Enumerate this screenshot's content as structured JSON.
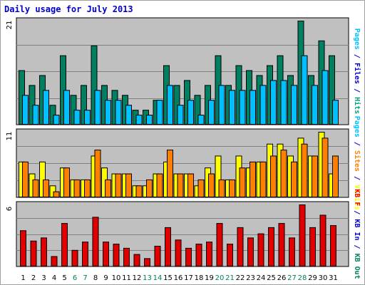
{
  "page": {
    "title": "Daily usage for July 2013",
    "background": "#ffffff",
    "frame_color": "#a0a0a0",
    "panel_color": "#c0c0c0"
  },
  "chart_data": [
    {
      "type": "bar",
      "panel": "top",
      "title": "Daily usage for July 2013",
      "ylabel_parts": [
        {
          "text": "Pages",
          "color": "#00c0ff"
        },
        {
          "text": " / ",
          "color": "#0000cc"
        },
        {
          "text": "Files",
          "color": "#0000cc"
        },
        {
          "text": " / ",
          "color": "#0000cc"
        },
        {
          "text": "Hits",
          "color": "#00a080"
        }
      ],
      "ymax_label": "21",
      "ylim": [
        0,
        21
      ],
      "categories": [
        "1",
        "2",
        "3",
        "4",
        "5",
        "6",
        "7",
        "8",
        "9",
        "10",
        "11",
        "12",
        "13",
        "14",
        "15",
        "16",
        "17",
        "18",
        "19",
        "20",
        "21",
        "22",
        "23",
        "24",
        "25",
        "26",
        "27",
        "28",
        "29",
        "30",
        "31"
      ],
      "series": [
        {
          "name": "Hits",
          "color": "#008060",
          "values": [
            11,
            8,
            10,
            4,
            14,
            6,
            8,
            16,
            8,
            7,
            6,
            3,
            3,
            5,
            12,
            8,
            9,
            6,
            8,
            14,
            8,
            12,
            11,
            10,
            12,
            14,
            10,
            21,
            10,
            17,
            14
          ]
        },
        {
          "name": "Files",
          "color": "#00c0ff",
          "values": [
            6,
            4,
            7,
            2,
            7,
            3,
            3,
            7,
            5,
            5,
            4,
            2,
            2,
            5,
            8,
            4,
            5,
            2,
            5,
            8,
            7,
            7,
            7,
            8,
            9,
            9,
            8,
            14,
            8,
            11,
            5
          ]
        }
      ]
    },
    {
      "type": "bar",
      "panel": "middle",
      "ylabel_parts": [
        {
          "text": "Pages",
          "color": "#00c0ff"
        },
        {
          "text": " / ",
          "color": "#0000cc"
        },
        {
          "text": "Sites",
          "color": "#ff8000"
        },
        {
          "text": " / ",
          "color": "#0000cc"
        },
        {
          "text": "Visits",
          "color": "#ffff00"
        }
      ],
      "ymax_label": "11",
      "ylim": [
        0,
        11
      ],
      "categories": [
        "1",
        "2",
        "3",
        "4",
        "5",
        "6",
        "7",
        "8",
        "9",
        "10",
        "11",
        "12",
        "13",
        "14",
        "15",
        "16",
        "17",
        "18",
        "19",
        "20",
        "21",
        "22",
        "23",
        "24",
        "25",
        "26",
        "27",
        "28",
        "29",
        "30",
        "31"
      ],
      "series": [
        {
          "name": "Visits",
          "color": "#ffff00",
          "values": [
            6,
            4,
            6,
            2,
            5,
            3,
            3,
            7,
            5,
            4,
            4,
            2,
            2,
            4,
            6,
            4,
            4,
            2,
            5,
            7,
            3,
            7,
            5,
            6,
            9,
            9,
            7,
            10,
            7,
            11,
            4
          ]
        },
        {
          "name": "Sites",
          "color": "#ff8000",
          "values": [
            6,
            3,
            3,
            1,
            5,
            3,
            3,
            8,
            3,
            4,
            4,
            2,
            3,
            4,
            8,
            4,
            4,
            3,
            4,
            3,
            3,
            5,
            6,
            6,
            7,
            8,
            6,
            9,
            7,
            10,
            7
          ]
        }
      ]
    },
    {
      "type": "bar",
      "panel": "bottom",
      "ylabel_parts": [
        {
          "text": "KB F",
          "color": "#ff0000"
        },
        {
          "text": " / ",
          "color": "#0000cc"
        },
        {
          "text": "KB In",
          "color": "#0000cc"
        },
        {
          "text": " / ",
          "color": "#0000cc"
        },
        {
          "text": "KB Out",
          "color": "#008060"
        }
      ],
      "ymax_label": "6",
      "ylim": [
        0,
        6
      ],
      "categories": [
        "1",
        "2",
        "3",
        "4",
        "5",
        "6",
        "7",
        "8",
        "9",
        "10",
        "11",
        "12",
        "13",
        "14",
        "15",
        "16",
        "17",
        "18",
        "19",
        "20",
        "21",
        "22",
        "23",
        "24",
        "25",
        "26",
        "27",
        "28",
        "29",
        "30",
        "31"
      ],
      "series": [
        {
          "name": "KB F",
          "color": "#e00000",
          "values": [
            3.5,
            2.5,
            2.8,
            1.0,
            4.2,
            1.6,
            2.4,
            4.8,
            2.4,
            2.2,
            1.8,
            1.2,
            0.8,
            2.0,
            3.8,
            2.6,
            1.8,
            2.2,
            2.4,
            4.2,
            2.2,
            3.8,
            2.8,
            3.2,
            3.8,
            4.2,
            2.8,
            6.0,
            3.8,
            5.0,
            4.0
          ]
        }
      ]
    }
  ],
  "x_axis": {
    "labels": [
      "1",
      "2",
      "3",
      "4",
      "5",
      "6",
      "7",
      "8",
      "9",
      "10",
      "11",
      "12",
      "13",
      "14",
      "15",
      "16",
      "17",
      "18",
      "19",
      "20",
      "21",
      "22",
      "23",
      "24",
      "25",
      "26",
      "27",
      "28",
      "29",
      "30",
      "31"
    ],
    "weekend_days": [
      "6",
      "7",
      "13",
      "14",
      "20",
      "21",
      "27",
      "28"
    ],
    "weekday_color": "#000000",
    "weekend_color": "#008060"
  }
}
